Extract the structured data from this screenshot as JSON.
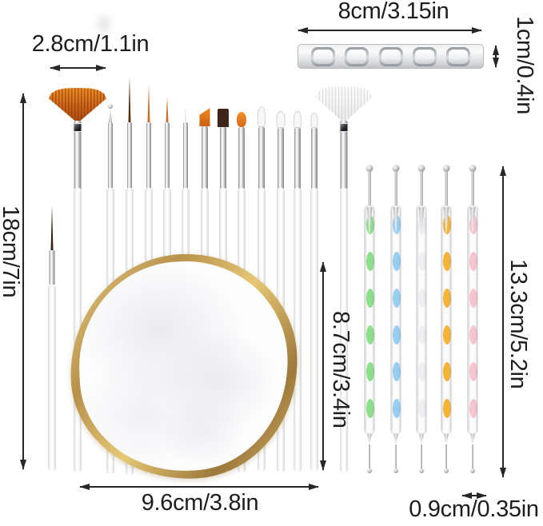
{
  "measurements": {
    "fan_brush_width": "2.8cm/1.1in",
    "holder_width": "8cm/3.15in",
    "holder_height": "1cm/0.4in",
    "brush_length": "18cm/7in",
    "handle_length": "8.7cm/3.4in",
    "dotting_pen_length": "13.3cm/5.2in",
    "palette_width": "9.6cm/3.8in",
    "dotting_pen_width": "0.9cm/0.35in"
  },
  "colors": {
    "measurement_text": "#1d1d1d",
    "arrow": "#262626",
    "orange_bristles": "#d2691e",
    "dark_brown_bristles": "#3f2418",
    "white_bristles": "#f1f1f3",
    "gold_rim": "#c49b42",
    "palette_face": "#fdfdfe",
    "silver": "#c8c8cc",
    "dotting_green": "#8ce08a",
    "dotting_blue": "#97cff2",
    "dotting_white": "#edeff1",
    "dotting_orange": "#f6b435",
    "dotting_pink": "#f8c5cd"
  },
  "objects": {
    "brush_count": 15,
    "dotting_pen_count": 5,
    "holder_slot_count": 5
  }
}
